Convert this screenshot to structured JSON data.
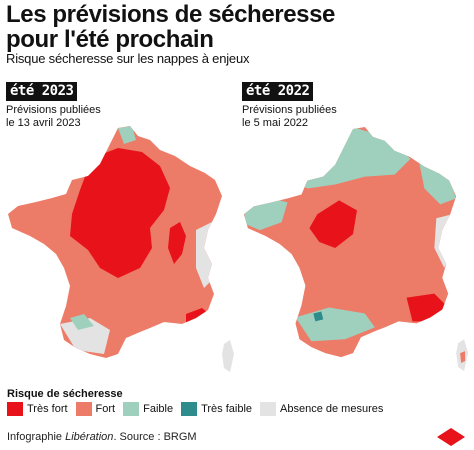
{
  "title_line1": "Les prévisions de sécheresse",
  "title_line2": "pour l'été prochain",
  "subtitle": "Risque sécheresse sur les nappes à enjeux",
  "maps": [
    {
      "edition": "été 2023",
      "note_line1": "Prévisions publiées",
      "note_line2": "le 13 avril 2023"
    },
    {
      "edition": "été 2022",
      "note_line1": "Prévisions publiées",
      "note_line2": "le 5 mai 2022"
    }
  ],
  "legend": {
    "title": "Risque de sécheresse",
    "items": [
      {
        "label": "Très fort",
        "color": "#e8121a"
      },
      {
        "label": "Fort",
        "color": "#ec7c68"
      },
      {
        "label": "Faible",
        "color": "#9fcfbd"
      },
      {
        "label": "Très faible",
        "color": "#2e8c8c"
      },
      {
        "label": "Absence de mesures",
        "color": "#e3e3e3"
      }
    ]
  },
  "source": {
    "prefix": "Infographie ",
    "brand": "Libération",
    "suffix": ". Source : BRGM"
  },
  "colors": {
    "tres_fort": "#e8121a",
    "fort": "#ec7c68",
    "faible": "#9fcfbd",
    "tres_faible": "#2e8c8c",
    "absence": "#e3e3e3",
    "brand_accent": "#e8121a"
  }
}
